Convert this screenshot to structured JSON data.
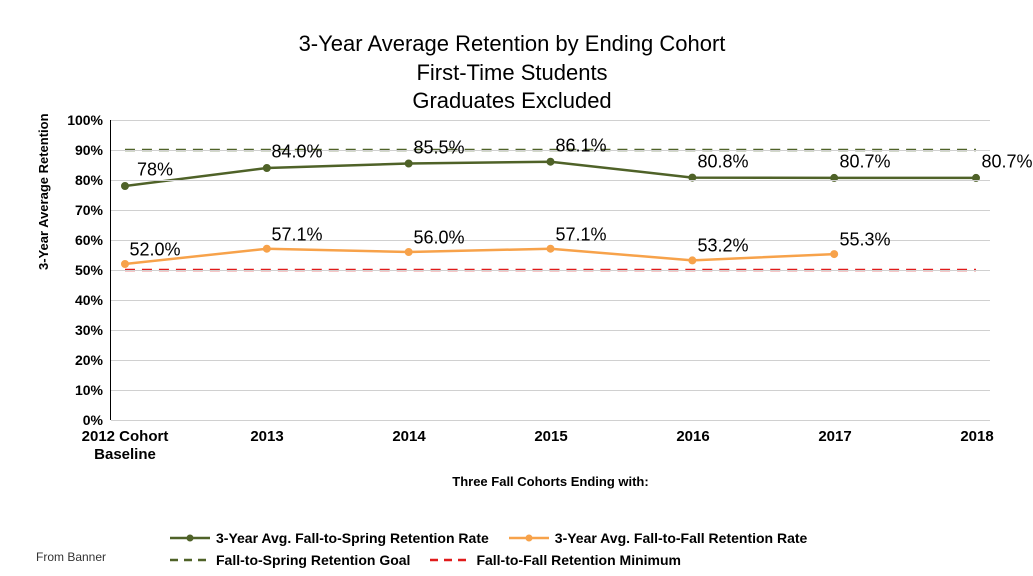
{
  "chart": {
    "type": "line",
    "title_lines": [
      "3-Year Average Retention by Ending Cohort",
      "First-Time Students",
      "Graduates Excluded"
    ],
    "title_fontsize": 22,
    "background_color": "#ffffff",
    "grid_color": "#d0d0d0",
    "y_axis": {
      "title": "3-Year Average Retention",
      "min": 0,
      "max": 100,
      "tick_step": 10,
      "ticks": [
        0,
        10,
        20,
        30,
        40,
        50,
        60,
        70,
        80,
        90,
        100
      ],
      "tick_labels": [
        "0%",
        "10%",
        "20%",
        "30%",
        "40%",
        "50%",
        "60%",
        "70%",
        "80%",
        "90%",
        "100%"
      ]
    },
    "x_axis": {
      "title": "Three Fall Cohorts Ending with:",
      "categories": [
        "2012 Cohort\nBaseline",
        "2013",
        "2014",
        "2015",
        "2016",
        "2017",
        "2018"
      ]
    },
    "series": [
      {
        "name": "3-Year Avg. Fall-to-Spring Retention Rate",
        "color": "#4f6228",
        "line_width": 2.5,
        "marker": "circle",
        "marker_size": 7,
        "dash": "solid",
        "values": [
          78,
          84.0,
          85.5,
          86.1,
          80.8,
          80.7,
          80.7
        ],
        "labels": [
          "78%",
          "84.0%",
          "85.5%",
          "86.1%",
          "80.8%",
          "80.7%",
          "80.7%"
        ]
      },
      {
        "name": "3-Year Avg. Fall-to-Fall Retention Rate",
        "color": "#f7a24a",
        "line_width": 2.5,
        "marker": "circle",
        "marker_size": 7,
        "dash": "solid",
        "values": [
          52.0,
          57.1,
          56.0,
          57.1,
          53.2,
          55.3,
          null
        ],
        "labels": [
          "52.0%",
          "57.1%",
          "56.0%",
          "57.1%",
          "53.2%",
          "55.3%",
          ""
        ]
      },
      {
        "name": "Fall-to-Spring Retention Goal",
        "color": "#4f6228",
        "line_width": 2.5,
        "marker": "none",
        "dash": "dashed",
        "values": [
          90,
          90,
          90,
          90,
          90,
          90,
          90
        ],
        "labels": [
          "",
          "",
          "",
          "",
          "",
          "",
          ""
        ]
      },
      {
        "name": "Fall-to-Fall Retention Minimum",
        "color": "#e01b1b",
        "line_width": 2.5,
        "marker": "none",
        "dash": "dashed",
        "values": [
          50,
          50,
          50,
          50,
          50,
          50,
          50
        ],
        "labels": [
          "",
          "",
          "",
          "",
          "",
          "",
          ""
        ]
      }
    ],
    "legend": {
      "rows": [
        [
          "3-Year Avg. Fall-to-Spring Retention Rate",
          "3-Year Avg. Fall-to-Fall Retention Rate"
        ],
        [
          "Fall-to-Spring Retention Goal",
          "Fall-to-Fall Retention Minimum"
        ]
      ]
    },
    "footer": "From Banner"
  }
}
